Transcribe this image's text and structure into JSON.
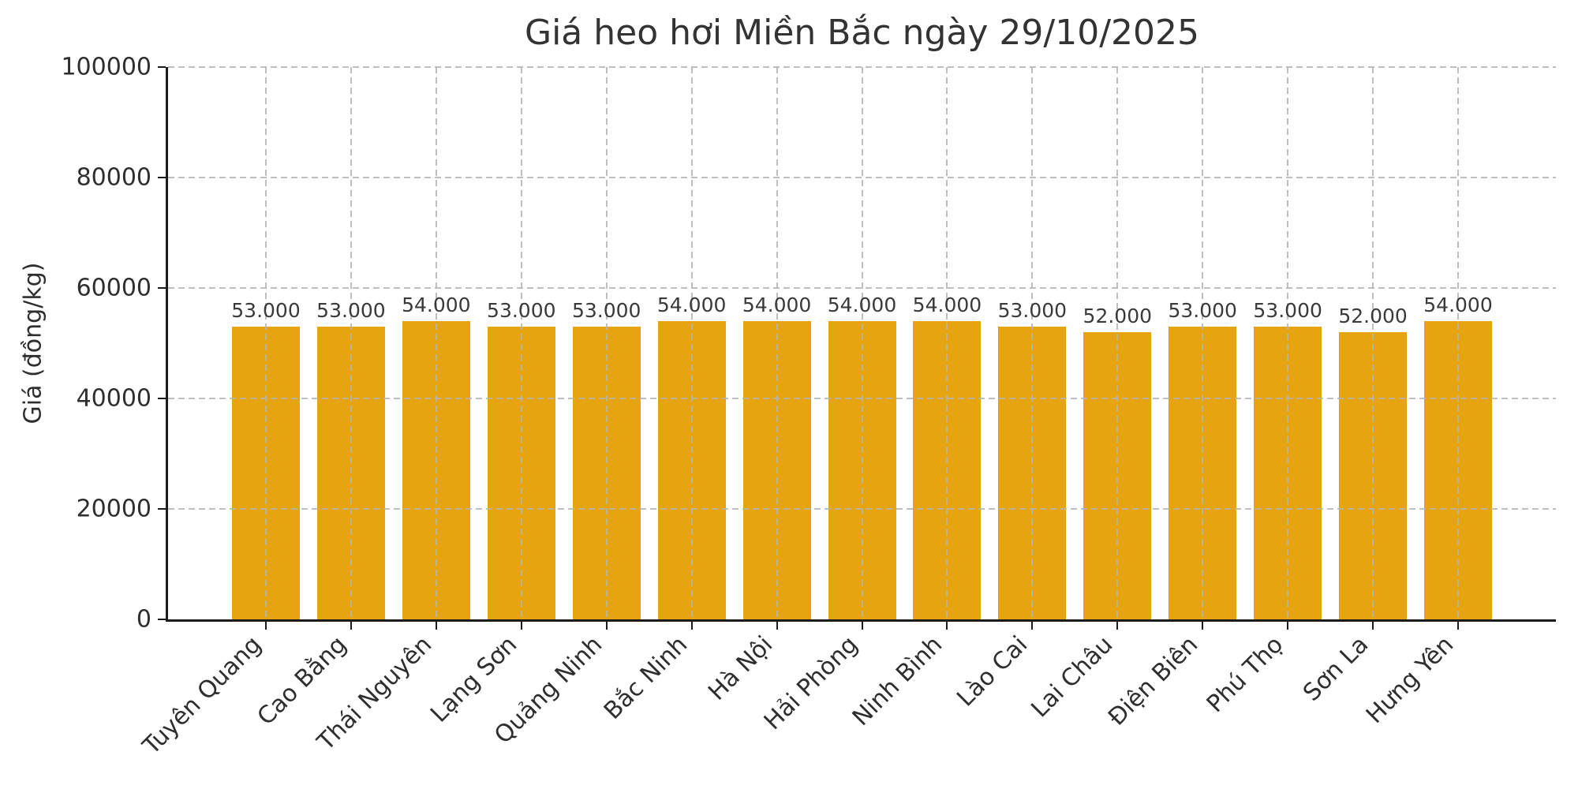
{
  "chart_data": {
    "type": "bar",
    "title": "Giá heo hơi Miền Bắc ngày 29/10/2025",
    "xlabel": "",
    "ylabel": "Giá (đồng/kg)",
    "categories": [
      "Tuyên Quang",
      "Cao Bằng",
      "Thái Nguyên",
      "Lạng Sơn",
      "Quảng Ninh",
      "Bắc Ninh",
      "Hà Nội",
      "Hải Phòng",
      "Ninh Bình",
      "Lào Cai",
      "Lai Châu",
      "Điện Biên",
      "Phú Thọ",
      "Sơn La",
      "Hưng Yên"
    ],
    "values": [
      53000,
      53000,
      54000,
      53000,
      53000,
      54000,
      54000,
      54000,
      54000,
      53000,
      52000,
      53000,
      53000,
      52000,
      54000
    ],
    "bar_labels": [
      "53.000",
      "53.000",
      "54.000",
      "53.000",
      "53.000",
      "54.000",
      "54.000",
      "54.000",
      "54.000",
      "53.000",
      "52.000",
      "53.000",
      "53.000",
      "52.000",
      "54.000"
    ],
    "ylim": [
      0,
      100000
    ],
    "yticks": [
      0,
      20000,
      40000,
      60000,
      80000,
      100000
    ],
    "ytick_labels": [
      "0",
      "20000",
      "40000",
      "60000",
      "80000",
      "100000"
    ],
    "grid": "dashed both axes, drawn over bars",
    "legend_position": "none",
    "colors": {
      "bar": "#E6A410",
      "grid": "#b4b4b4",
      "axis": "#1c1c1c",
      "title_text": "#333333",
      "tick_text": "#2e2e2e",
      "value_label_text": "#3a3a3a",
      "background": "#ffffff"
    }
  }
}
